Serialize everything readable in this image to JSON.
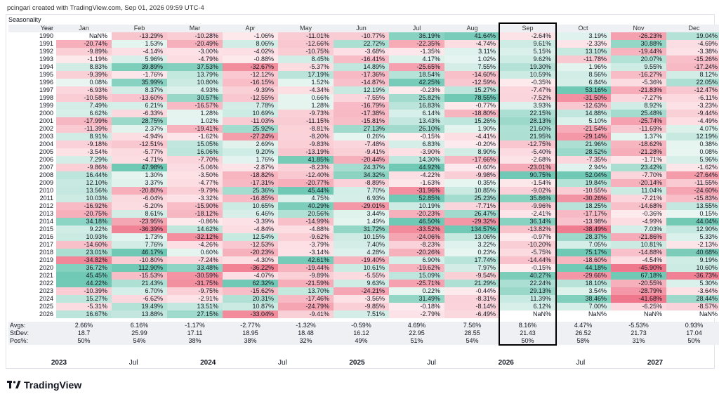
{
  "header": "pcingari created with TradingView.com, Sep 01, 2026 09:59 UTC-4",
  "brand": "TradingView",
  "highlight_color": "#000000",
  "chart_data": {
    "type": "heatmap",
    "title": "Seasonality",
    "year_header": "Year",
    "columns": [
      "Jan",
      "Feb",
      "Mar",
      "Apr",
      "May",
      "Jun",
      "Jul",
      "Aug",
      "Sep",
      "Oct",
      "Nov",
      "Dec"
    ],
    "highlighted_column": "Sep",
    "rows": [
      {
        "year": "1990",
        "values": [
          "NaN%",
          "-13.29%",
          "-10.28%",
          "-1.06%",
          "-11.01%",
          "-10.77%",
          "36.19%",
          "41.64%",
          "-2.64%",
          "3.19%",
          "-26.23%",
          "19.04%"
        ]
      },
      {
        "year": "1991",
        "values": [
          "-20.74%",
          "1.53%",
          "-20.49%",
          "8.06%",
          "-12.66%",
          "22.72%",
          "-22.35%",
          "-4.74%",
          "9.61%",
          "-2.33%",
          "30.88%",
          "-4.69%"
        ]
      },
      {
        "year": "1992",
        "values": [
          "-9.89%",
          "-4.14%",
          "-3.00%",
          "-4.02%",
          "-10.75%",
          "-3.68%",
          "-1.35%",
          "3.11%",
          "5.15%",
          "13.10%",
          "-19.44%",
          "-3.38%"
        ]
      },
      {
        "year": "1993",
        "values": [
          "-1.19%",
          "5.96%",
          "-4.79%",
          "-0.88%",
          "8.45%",
          "-16.41%",
          "4.17%",
          "1.02%",
          "9.62%",
          "-11.78%",
          "20.07%",
          "-15.26%"
        ]
      },
      {
        "year": "1994",
        "values": [
          "8.83%",
          "39.89%",
          "37.53%",
          "-32.67%",
          "-5.37%",
          "14.89%",
          "-25.65%",
          "7.55%",
          "19.30%",
          "1.96%",
          "9.55%",
          "-17.24%"
        ]
      },
      {
        "year": "1995",
        "values": [
          "-9.39%",
          "-1.76%",
          "13.79%",
          "-12.12%",
          "17.19%",
          "-17.36%",
          "18.54%",
          "-14.60%",
          "10.59%",
          "8.56%",
          "-16.27%",
          "8.12%"
        ]
      },
      {
        "year": "1996",
        "values": [
          "0.08%",
          "35.99%",
          "10.80%",
          "-16.15%",
          "1.52%",
          "-14.87%",
          "42.25%",
          "-12.59%",
          "-0.35%",
          "6.84%",
          "-5.36%",
          "22.05%"
        ]
      },
      {
        "year": "1997",
        "values": [
          "-6.93%",
          "8.37%",
          "4.93%",
          "-9.39%",
          "-4.34%",
          "12.19%",
          "-0.23%",
          "15.27%",
          "-7.47%",
          "53.16%",
          "-21.83%",
          "-12.47%"
        ]
      },
      {
        "year": "1998",
        "values": [
          "-10.58%",
          "-13.60%",
          "30.57%",
          "-12.55%",
          "0.66%",
          "-7.55%",
          "25.82%",
          "78.55%",
          "-7.52%",
          "-31.50%",
          "-7.27%",
          "-6.11%"
        ]
      },
      {
        "year": "1999",
        "values": [
          "7.49%",
          "6.21%",
          "-16.57%",
          "7.78%",
          "1.28%",
          "-16.79%",
          "16.83%",
          "-0.77%",
          "3.93%",
          "-12.63%",
          "8.92%",
          "-3.23%"
        ]
      },
      {
        "year": "2000",
        "values": [
          "6.62%",
          "-6.33%",
          "1.28%",
          "10.69%",
          "-9.73%",
          "-17.38%",
          "6.14%",
          "-18.80%",
          "22.15%",
          "14.88%",
          "25.48%",
          "-9.44%"
        ]
      },
      {
        "year": "2001",
        "values": [
          "-17.99%",
          "28.75%",
          "1.02%",
          "-11.03%",
          "-11.15%",
          "-15.81%",
          "13.43%",
          "15.26%",
          "28.13%",
          "5.10%",
          "-25.74%",
          "-4.49%"
        ]
      },
      {
        "year": "2002",
        "values": [
          "-11.39%",
          "2.37%",
          "-19.41%",
          "25.92%",
          "-8.81%",
          "27.13%",
          "26.10%",
          "1.90%",
          "21.60%",
          "-21.54%",
          "-11.69%",
          "4.07%"
        ]
      },
      {
        "year": "2003",
        "values": [
          "8.91%",
          "-4.94%",
          "-1.62%",
          "-27.24%",
          "-8.20%",
          "0.26%",
          "-0.15%",
          "-4.41%",
          "21.95%",
          "-29.14%",
          "1.37%",
          "12.19%"
        ]
      },
      {
        "year": "2004",
        "values": [
          "-9.18%",
          "-12.51%",
          "15.05%",
          "2.69%",
          "-9.83%",
          "-7.48%",
          "6.83%",
          "-0.20%",
          "-12.75%",
          "21.96%",
          "-18.62%",
          "0.38%"
        ]
      },
      {
        "year": "2005",
        "values": [
          "-3.54%",
          "-5.77%",
          "16.06%",
          "9.20%",
          "-13.19%",
          "-9.41%",
          "-3.90%",
          "8.90%",
          "-5.40%",
          "28.52%",
          "-21.28%",
          "0.08%"
        ]
      },
      {
        "year": "2006",
        "values": [
          "7.29%",
          "-4.71%",
          "-7.70%",
          "1.76%",
          "41.85%",
          "-20.44%",
          "14.30%",
          "-17.66%",
          "-2.68%",
          "-7.35%",
          "-1.71%",
          "5.96%"
        ]
      },
      {
        "year": "2007",
        "values": [
          "-9.86%",
          "47.98%",
          "-5.06%",
          "-2.87%",
          "-8.23%",
          "24.37%",
          "44.92%",
          "-0.60%",
          "-23.01%",
          "2.94%",
          "23.42%",
          "-1.62%"
        ]
      },
      {
        "year": "2008",
        "values": [
          "16.44%",
          "1.30%",
          "-3.50%",
          "-18.82%",
          "-12.40%",
          "34.32%",
          "-4.22%",
          "-9.98%",
          "90.75%",
          "52.04%",
          "-7.70%",
          "-27.64%"
        ]
      },
      {
        "year": "2009",
        "values": [
          "12.10%",
          "3.37%",
          "-4.77%",
          "-17.31%",
          "-20.77%",
          "-8.89%",
          "-1.63%",
          "0.35%",
          "-1.54%",
          "19.84%",
          "-20.14%",
          "-11.55%"
        ]
      },
      {
        "year": "2010",
        "values": [
          "13.56%",
          "-20.80%",
          "-9.79%",
          "25.36%",
          "45.44%",
          "7.70%",
          "-31.96%",
          "10.85%",
          "-9.02%",
          "-10.55%",
          "11.04%",
          "-24.60%"
        ]
      },
      {
        "year": "2011",
        "values": [
          "10.03%",
          "-6.04%",
          "-3.32%",
          "-16.85%",
          "4.75%",
          "6.93%",
          "52.85%",
          "25.23%",
          "35.86%",
          "-30.26%",
          "-7.21%",
          "-15.83%"
        ]
      },
      {
        "year": "2012",
        "values": [
          "-16.92%",
          "-5.20%",
          "-15.90%",
          "10.65%",
          "40.29%",
          "-29.01%",
          "10.19%",
          "-7.71%",
          "-9.96%",
          "18.25%",
          "-14.68%",
          "13.55%"
        ]
      },
      {
        "year": "2013",
        "values": [
          "-20.75%",
          "8.61%",
          "-18.12%",
          "6.46%",
          "20.56%",
          "3.44%",
          "-20.23%",
          "26.47%",
          "-2.41%",
          "-17.17%",
          "-0.36%",
          "0.15%"
        ]
      },
      {
        "year": "2014",
        "values": [
          "34.18%",
          "-23.95%",
          "-0.86%",
          "-3.39%",
          "-14.99%",
          "1.49%",
          "46.50%",
          "-29.32%",
          "36.14%",
          "-13.98%",
          "-4.99%",
          "44.04%"
        ]
      },
      {
        "year": "2015",
        "values": [
          "9.22%",
          "-36.39%",
          "14.62%",
          "-4.84%",
          "-4.88%",
          "31.72%",
          "-33.52%",
          "134.57%",
          "-13.82%",
          "-38.49%",
          "7.03%",
          "12.90%"
        ]
      },
      {
        "year": "2016",
        "values": [
          "10.93%",
          "1.73%",
          "-32.12%",
          "12.54%",
          "-9.62%",
          "10.15%",
          "-24.06%",
          "13.06%",
          "-0.97%",
          "28.37%",
          "-21.86%",
          "5.33%"
        ]
      },
      {
        "year": "2017",
        "values": [
          "-14.60%",
          "7.76%",
          "-4.26%",
          "-12.53%",
          "-3.79%",
          "7.40%",
          "-8.23%",
          "3.22%",
          "-10.20%",
          "7.05%",
          "10.81%",
          "-2.13%"
        ]
      },
      {
        "year": "2018",
        "values": [
          "23.01%",
          "46.17%",
          "0.60%",
          "-20.23%",
          "-3.14%",
          "4.28%",
          "-20.26%",
          "0.23%",
          "-5.75%",
          "75.17%",
          "-14.88%",
          "40.68%"
        ]
      },
      {
        "year": "2019",
        "values": [
          "-34.82%",
          "-10.80%",
          "-7.24%",
          "-4.30%",
          "42.61%",
          "-19.40%",
          "6.90%",
          "17.74%",
          "-14.44%",
          "-18.60%",
          "-4.54%",
          "9.19%"
        ]
      },
      {
        "year": "2020",
        "values": [
          "36.72%",
          "112.90%",
          "33.48%",
          "-36.22%",
          "-19.44%",
          "10.61%",
          "-19.62%",
          "7.97%",
          "-0.15%",
          "44.18%",
          "-45.90%",
          "10.60%"
        ]
      },
      {
        "year": "2021",
        "values": [
          "45.45%",
          "-15.53%",
          "-30.59%",
          "-4.07%",
          "-9.89%",
          "-5.55%",
          "15.09%",
          "-9.54%",
          "40.27%",
          "-29.66%",
          "67.18%",
          "-36.73%"
        ]
      },
      {
        "year": "2022",
        "values": [
          "44.22%",
          "21.43%",
          "-31.75%",
          "62.32%",
          "-21.59%",
          "9.63%",
          "-25.71%",
          "21.29%",
          "22.24%",
          "18.10%",
          "-20.55%",
          "5.30%"
        ]
      },
      {
        "year": "2023",
        "values": [
          "-10.39%",
          "6.70%",
          "-9.75%",
          "-15.62%",
          "13.70%",
          "-24.21%",
          "0.22%",
          "-0.44%",
          "29.13%",
          "3.54%",
          "-28.79%",
          "-3.64%"
        ]
      },
      {
        "year": "2024",
        "values": [
          "15.27%",
          "-6.62%",
          "-2.91%",
          "20.31%",
          "-17.46%",
          "-3.56%",
          "31.49%",
          "-8.31%",
          "11.39%",
          "38.46%",
          "-41.68%",
          "28.44%"
        ]
      },
      {
        "year": "2025",
        "values": [
          "-5.31%",
          "19.49%",
          "13.51%",
          "10.87%",
          "-24.79%",
          "-9.85%",
          "-0.18%",
          "-8.14%",
          "6.12%",
          "7.00%",
          "-6.25%",
          "-8.57%"
        ]
      },
      {
        "year": "2026",
        "values": [
          "16.67%",
          "13.88%",
          "27.15%",
          "-33.04%",
          "-9.41%",
          "7.51%",
          "-2.79%",
          "-6.49%",
          "NaN%",
          "NaN%",
          "NaN%",
          "NaN%"
        ]
      }
    ],
    "stats": [
      {
        "label": "Avgs:",
        "values": [
          "2.66%",
          "6.16%",
          "-1.17%",
          "-2.77%",
          "-1.32%",
          "-0.59%",
          "4.69%",
          "7.56%",
          "8.16%",
          "4.47%",
          "-5.53%",
          "0.93%"
        ]
      },
      {
        "label": "StDev:",
        "values": [
          "18.7",
          "25.99",
          "17.11",
          "18.95",
          "18.48",
          "16.12",
          "22.95",
          "28.55",
          "21.43",
          "26.52",
          "21.73",
          "17.04"
        ]
      },
      {
        "label": "Pos%:",
        "values": [
          "50%",
          "54%",
          "38%",
          "38%",
          "32%",
          "49%",
          "51%",
          "54%",
          "50%",
          "58%",
          "31%",
          "50%"
        ]
      }
    ],
    "xaxis_ticks": [
      {
        "label": "2023",
        "bold": true
      },
      {
        "label": "Jul",
        "bold": false
      },
      {
        "label": "2024",
        "bold": true
      },
      {
        "label": "Jul",
        "bold": false
      },
      {
        "label": "2025",
        "bold": true
      },
      {
        "label": "Jul",
        "bold": false
      },
      {
        "label": "2026",
        "bold": true
      },
      {
        "label": "Jul",
        "bold": false
      },
      {
        "label": "2027",
        "bold": true
      }
    ]
  }
}
